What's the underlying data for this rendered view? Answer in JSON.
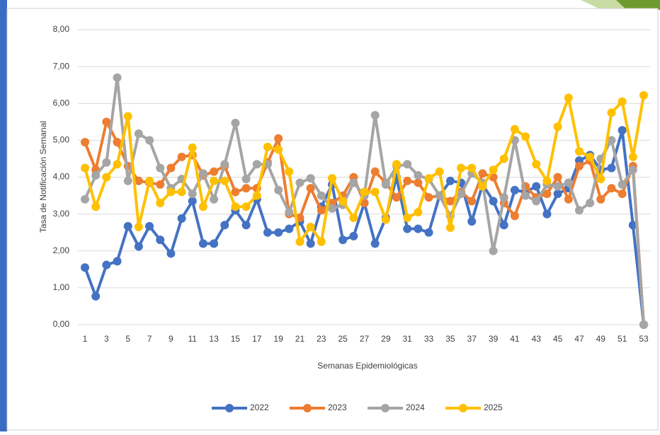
{
  "chart_data": {
    "type": "line",
    "ylabel": "Tasa de Notificación Semanal",
    "xlabel": "Semanas Epidemiológicas",
    "categories": [
      1,
      null,
      3,
      null,
      5,
      null,
      7,
      null,
      9,
      null,
      11,
      null,
      13,
      null,
      15,
      null,
      17,
      null,
      19,
      null,
      21,
      null,
      23,
      null,
      25,
      null,
      27,
      null,
      29,
      null,
      31,
      null,
      33,
      null,
      35,
      null,
      37,
      null,
      39,
      null,
      41,
      null,
      43,
      null,
      45,
      null,
      47,
      null,
      49,
      null,
      51,
      null,
      53
    ],
    "ylim": [
      0,
      8
    ],
    "yticks": [
      {
        "value": 0,
        "label": "0,00"
      },
      {
        "value": 1,
        "label": "1,00"
      },
      {
        "value": 2,
        "label": "2,00"
      },
      {
        "value": 3,
        "label": "3,00"
      },
      {
        "value": 4,
        "label": "4,00"
      },
      {
        "value": 5,
        "label": "5,00"
      },
      {
        "value": 6,
        "label": "6,00"
      },
      {
        "value": 7,
        "label": "7,00"
      },
      {
        "value": 8,
        "label": "8,00"
      }
    ],
    "grid": true,
    "legend": "bottom",
    "series": [
      {
        "name": "2022",
        "color": "#4472c4",
        "values": [
          1.55,
          0.77,
          1.62,
          1.72,
          2.67,
          2.12,
          2.67,
          2.3,
          1.93,
          2.88,
          3.35,
          2.2,
          2.2,
          2.7,
          3.1,
          2.7,
          3.4,
          2.5,
          2.5,
          2.6,
          2.8,
          2.2,
          3.2,
          3.8,
          2.3,
          2.4,
          3.3,
          2.2,
          2.9,
          4.0,
          2.6,
          2.6,
          2.5,
          3.5,
          3.9,
          3.85,
          2.8,
          3.8,
          3.35,
          2.7,
          3.65,
          3.6,
          3.75,
          3.0,
          3.55,
          3.7,
          4.45,
          4.6,
          4.2,
          4.25,
          5.27,
          2.7,
          0
        ]
      },
      {
        "name": "2023",
        "color": "#ed7d31",
        "values": [
          4.95,
          4.2,
          5.5,
          4.95,
          4.3,
          3.9,
          3.85,
          3.8,
          4.25,
          4.55,
          4.6,
          4.05,
          4.15,
          4.3,
          3.6,
          3.7,
          3.7,
          4.4,
          5.05,
          3.0,
          2.9,
          3.7,
          3.1,
          3.3,
          3.5,
          4.0,
          3.3,
          4.15,
          3.85,
          3.45,
          3.9,
          3.85,
          3.45,
          3.5,
          3.35,
          3.6,
          3.35,
          4.1,
          4.0,
          3.3,
          2.95,
          3.75,
          3.45,
          3.55,
          4.0,
          3.4,
          4.3,
          4.45,
          3.4,
          3.7,
          3.55,
          4.3,
          0
        ]
      },
      {
        "name": "2024",
        "color": "#a5a5a5",
        "values": [
          3.4,
          4.05,
          4.4,
          6.7,
          3.9,
          5.18,
          5.0,
          4.25,
          3.7,
          3.95,
          3.55,
          4.1,
          3.4,
          4.35,
          5.47,
          3.95,
          4.35,
          4.35,
          3.65,
          3.05,
          3.85,
          3.97,
          3.5,
          3.15,
          3.25,
          3.85,
          3.5,
          5.68,
          3.8,
          4.3,
          4.35,
          4.05,
          3.95,
          3.5,
          2.95,
          3.55,
          4.1,
          3.85,
          2.0,
          3.45,
          5.0,
          3.5,
          3.35,
          3.8,
          3.75,
          3.85,
          3.1,
          3.3,
          4.5,
          5.0,
          3.8,
          4.2,
          0
        ]
      },
      {
        "name": "2025",
        "color": "#ffc000",
        "values": [
          4.25,
          3.2,
          4.0,
          4.35,
          5.65,
          2.65,
          3.9,
          3.3,
          3.6,
          3.6,
          4.8,
          3.2,
          3.9,
          3.9,
          3.2,
          3.2,
          3.5,
          4.82,
          4.75,
          4.15,
          2.25,
          2.65,
          2.25,
          3.97,
          3.35,
          2.9,
          3.6,
          3.6,
          2.85,
          4.35,
          2.9,
          3.05,
          3.97,
          4.15,
          2.63,
          4.25,
          4.25,
          3.75,
          4.2,
          4.5,
          5.3,
          5.1,
          4.35,
          3.9,
          5.37,
          6.15,
          4.7,
          4.55,
          3.95,
          5.75,
          6.05,
          4.55,
          6.22
        ]
      }
    ]
  }
}
